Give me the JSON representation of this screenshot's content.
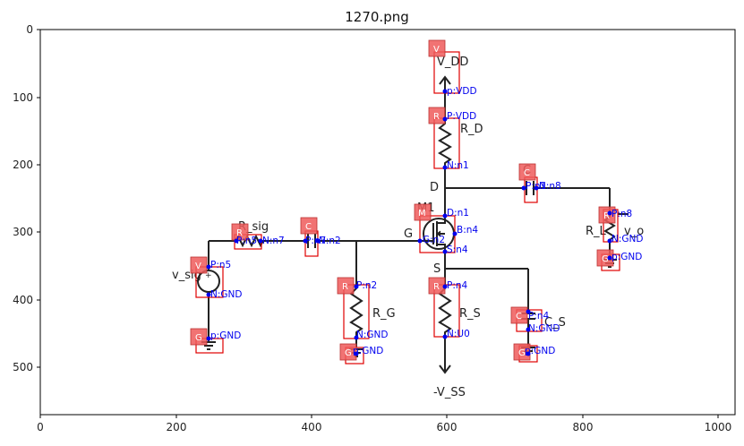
{
  "figure": {
    "title": "1270.png",
    "x_ticks": [
      "0",
      "200",
      "400",
      "600",
      "800",
      "1000"
    ],
    "y_ticks": [
      "0",
      "100",
      "200",
      "300",
      "400",
      "500"
    ]
  },
  "schematic": {
    "labels": {
      "vdd": "V_DD",
      "d": "D",
      "g": "G",
      "s": "S",
      "vss": "-V_SS",
      "rsig": "R_sig",
      "vsig": "v_sig",
      "rd": "R_D",
      "rg": "R_G",
      "rs": "R_S",
      "rl": "R_L",
      "vo": "v_o",
      "m1": "M1",
      "cs": "C_S",
      "c1": "C"
    },
    "components": [
      {
        "tag": "V",
        "pins": [
          "p:VDD"
        ]
      },
      {
        "tag": "R",
        "pins": [
          "P:VDD",
          "N:n1"
        ]
      },
      {
        "tag": "C",
        "pins": [
          "P:n1",
          "N:n8"
        ]
      },
      {
        "tag": "R",
        "pins": [
          "P:n8",
          "N:GND"
        ]
      },
      {
        "tag": "G",
        "pins": [
          "p:GND"
        ]
      },
      {
        "tag": "M",
        "pins": [
          "D:n1",
          "G:n2",
          "B:n4",
          "S:n4"
        ]
      },
      {
        "tag": "R",
        "pins": [
          "P:n5",
          "N:n7"
        ]
      },
      {
        "tag": "C",
        "pins": [
          "P:n7",
          "N:n2"
        ]
      },
      {
        "tag": "V",
        "pins": [
          "P:n5",
          "N:GND"
        ]
      },
      {
        "tag": "G",
        "pins": [
          "p:GND"
        ]
      },
      {
        "tag": "R",
        "pins": [
          "P:n2",
          "N:GND"
        ]
      },
      {
        "tag": "G",
        "pins": [
          "p:GND"
        ]
      },
      {
        "tag": "R",
        "pins": [
          "P:n4",
          "N:U0"
        ]
      },
      {
        "tag": "C",
        "pins": [
          "P:n4",
          "N:GND"
        ]
      },
      {
        "tag": "G",
        "pins": [
          "p:GND"
        ]
      }
    ]
  }
}
